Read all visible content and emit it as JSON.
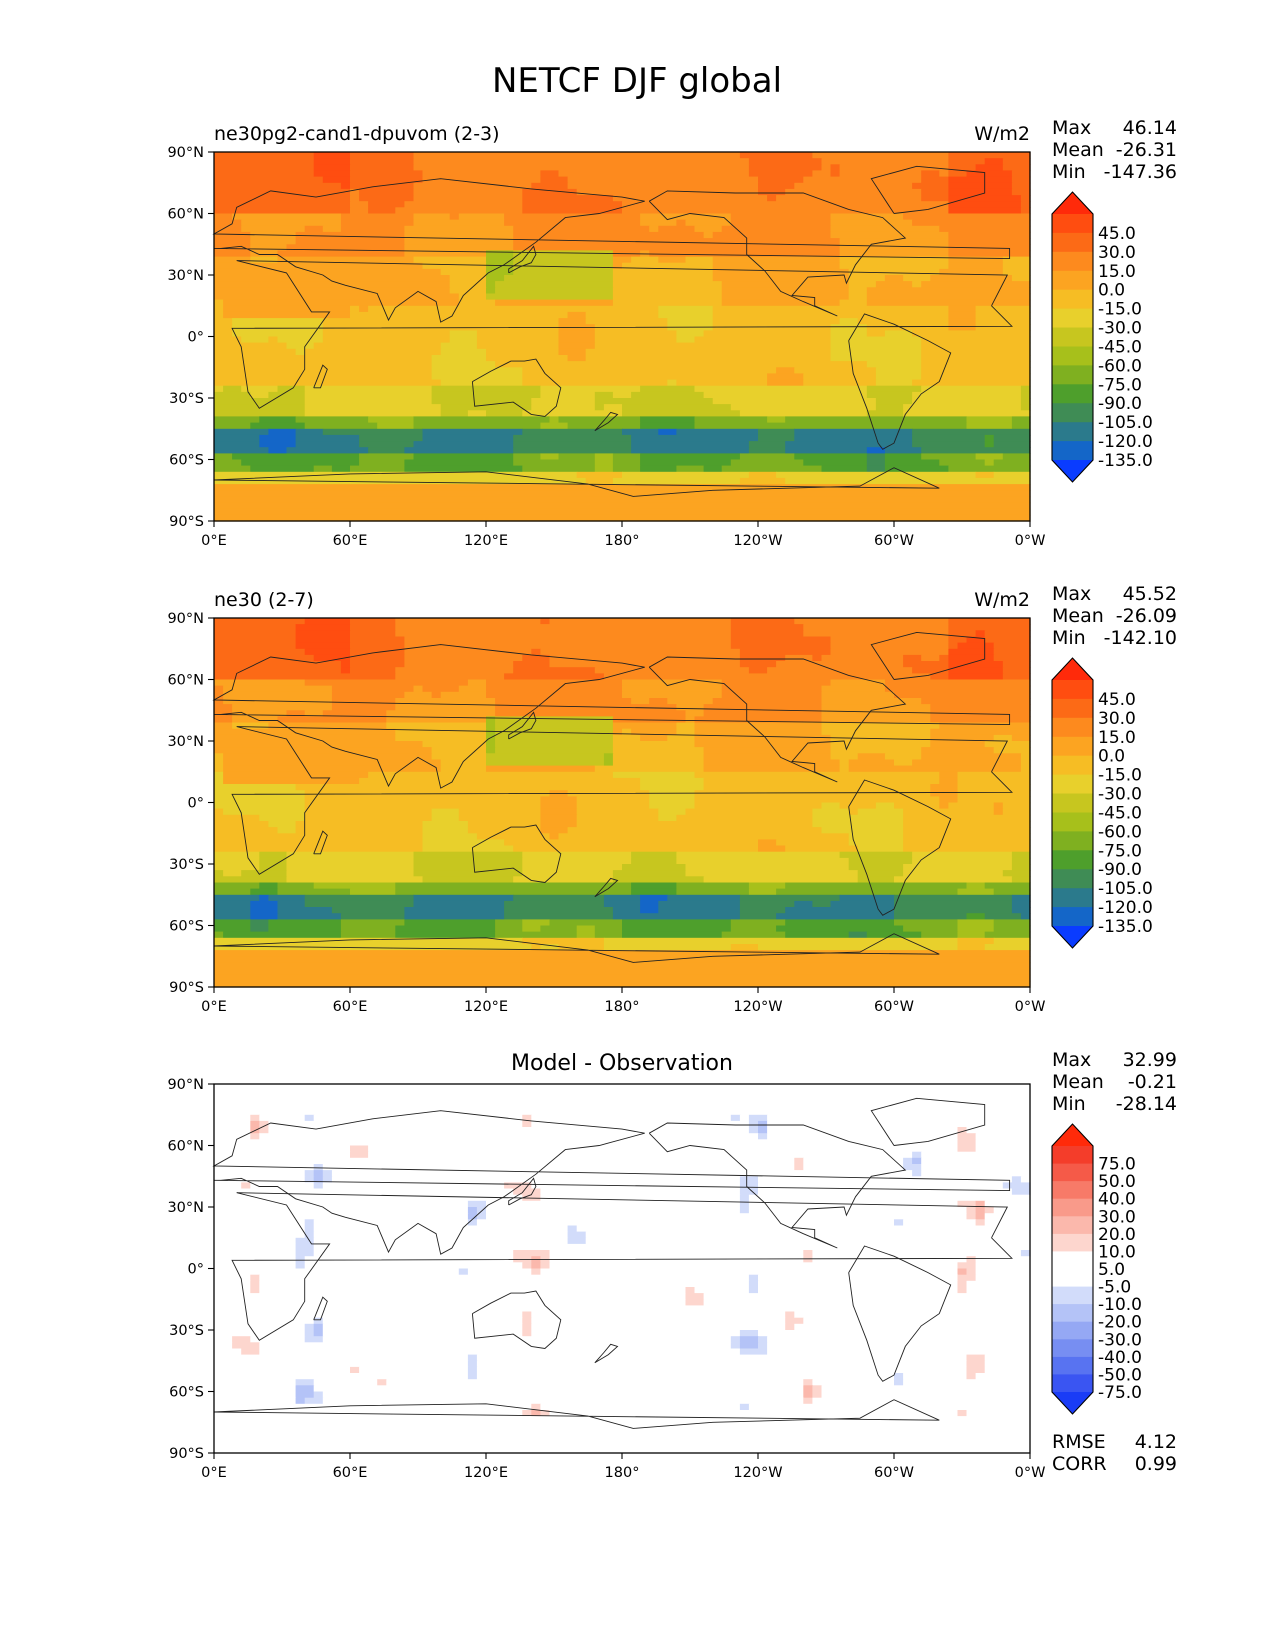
{
  "figure": {
    "suptitle": "NETCF DJF global"
  },
  "chart_data": [
    {
      "type": "heatmap",
      "left_title": "ne30pg2-cand1-dpuvom (2-3)",
      "center_title": "",
      "units": "W/m2",
      "stats": [
        {
          "label": "Max",
          "value": "46.14"
        },
        {
          "label": "Mean",
          "value": "-26.31"
        },
        {
          "label": "Min",
          "value": "-147.36"
        }
      ],
      "colorbar": {
        "levels": [
          "45.0",
          "30.0",
          "15.0",
          "0.0",
          "-15.0",
          "-30.0",
          "-45.0",
          "-60.0",
          "-75.0",
          "-90.0",
          "-105.0",
          "-120.0",
          "-135.0"
        ],
        "colors": [
          "#ff2a0a",
          "#ff4d10",
          "#fc6a16",
          "#fd8a1e",
          "#fca421",
          "#f6bd24",
          "#e8d02c",
          "#c7c61f",
          "#a7c01b",
          "#7fb020",
          "#4e9f2c",
          "#3f8c55",
          "#2b7a8c",
          "#1466c8",
          "#0a3cff"
        ]
      },
      "x_ticks": [
        "0°E",
        "60°E",
        "120°E",
        "180°",
        "120°W",
        "60°W",
        "0°W"
      ],
      "y_ticks": [
        "90°N",
        "60°N",
        "30°N",
        "0°",
        "30°S",
        "60°S",
        "90°S"
      ],
      "xlim": [
        0,
        360
      ],
      "ylim": [
        -90,
        90
      ],
      "extra_stats": []
    },
    {
      "type": "heatmap",
      "left_title": "ne30 (2-7)",
      "center_title": "",
      "units": "W/m2",
      "stats": [
        {
          "label": "Max",
          "value": "45.52"
        },
        {
          "label": "Mean",
          "value": "-26.09"
        },
        {
          "label": "Min",
          "value": "-142.10"
        }
      ],
      "colorbar": {
        "levels": [
          "45.0",
          "30.0",
          "15.0",
          "0.0",
          "-15.0",
          "-30.0",
          "-45.0",
          "-60.0",
          "-75.0",
          "-90.0",
          "-105.0",
          "-120.0",
          "-135.0"
        ],
        "colors": [
          "#ff2a0a",
          "#ff4d10",
          "#fc6a16",
          "#fd8a1e",
          "#fca421",
          "#f6bd24",
          "#e8d02c",
          "#c7c61f",
          "#a7c01b",
          "#7fb020",
          "#4e9f2c",
          "#3f8c55",
          "#2b7a8c",
          "#1466c8",
          "#0a3cff"
        ]
      },
      "x_ticks": [
        "0°E",
        "60°E",
        "120°E",
        "180°",
        "120°W",
        "60°W",
        "0°W"
      ],
      "y_ticks": [
        "90°N",
        "60°N",
        "30°N",
        "0°",
        "30°S",
        "60°S",
        "90°S"
      ],
      "xlim": [
        0,
        360
      ],
      "ylim": [
        -90,
        90
      ],
      "extra_stats": []
    },
    {
      "type": "heatmap",
      "left_title": "",
      "center_title": "Model - Observation",
      "units": "",
      "stats": [
        {
          "label": "Max",
          "value": "32.99"
        },
        {
          "label": "Mean",
          "value": "-0.21"
        },
        {
          "label": "Min",
          "value": "-28.14"
        }
      ],
      "colorbar": {
        "levels": [
          "75.0",
          "50.0",
          "40.0",
          "30.0",
          "20.0",
          "10.0",
          "5.0",
          "-5.0",
          "-10.0",
          "-20.0",
          "-30.0",
          "-40.0",
          "-50.0",
          "-75.0"
        ],
        "colors": [
          "#ff2a0a",
          "#f43d2a",
          "#f55a48",
          "#f77a68",
          "#f99a8a",
          "#fbb8ac",
          "#fdd6ce",
          "#ffffff",
          "#ffffff",
          "#d2dcfa",
          "#b4c3f7",
          "#95a8f4",
          "#778ef2",
          "#5873f1",
          "#3a55f2",
          "#1a3cf6"
        ]
      },
      "x_ticks": [
        "0°E",
        "60°E",
        "120°E",
        "180°",
        "120°W",
        "60°W",
        "0°W"
      ],
      "y_ticks": [
        "90°N",
        "60°N",
        "30°N",
        "0°",
        "30°S",
        "60°S",
        "90°S"
      ],
      "xlim": [
        0,
        360
      ],
      "ylim": [
        -90,
        90
      ],
      "extra_stats": [
        {
          "label": "RMSE",
          "value": "4.12"
        },
        {
          "label": "CORR",
          "value": "0.99"
        }
      ]
    }
  ]
}
